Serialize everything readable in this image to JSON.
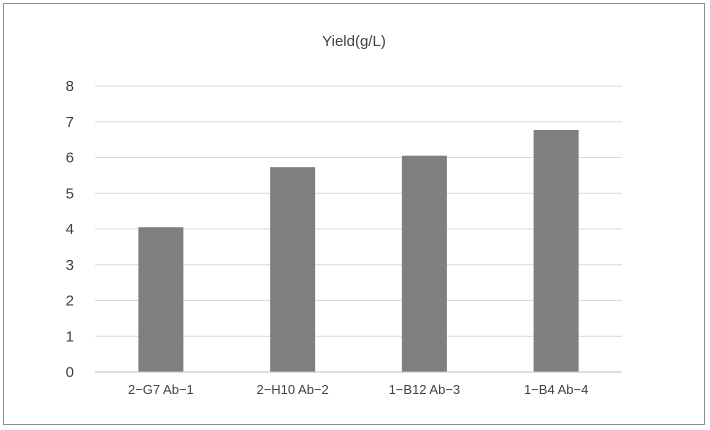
{
  "chart_data": {
    "type": "bar",
    "title": "Yield(g/L)",
    "categories": [
      "2−G7 Ab−1",
      "2−H10 Ab−2",
      "1−B12 Ab−3",
      "1−B4 Ab−4"
    ],
    "values": [
      4.05,
      5.73,
      6.05,
      6.77
    ],
    "ylim": [
      0,
      8
    ],
    "yticks": [
      0,
      1,
      2,
      3,
      4,
      5,
      6,
      7,
      8
    ],
    "grid": true,
    "bar_color": "#7f7f80",
    "gridline_color": "#d9d9d9"
  }
}
